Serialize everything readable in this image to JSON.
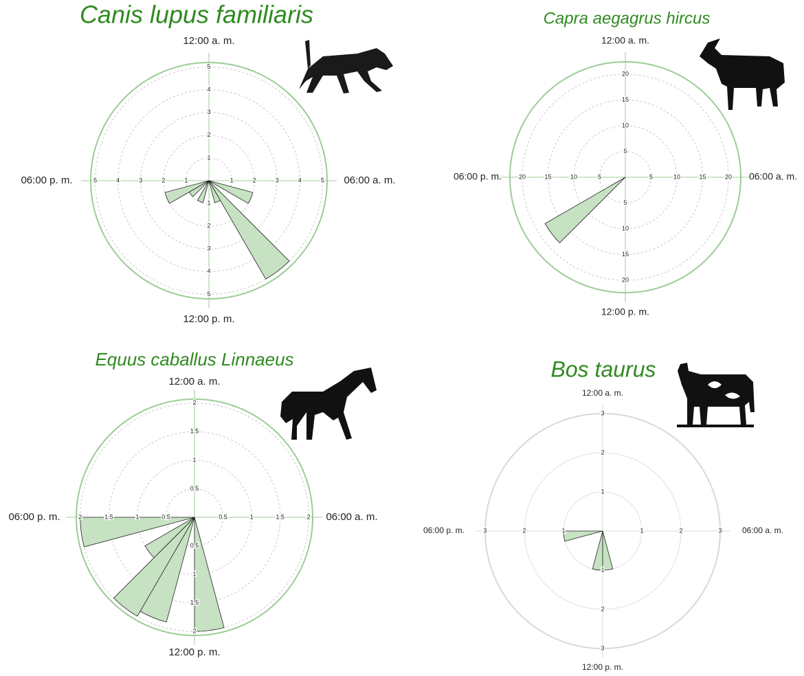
{
  "chart_data": [
    {
      "type": "rose",
      "title": "Canis lupus familiaris",
      "direction_labels": {
        "top": "12:00 a. m.",
        "right": "06:00 a. m.",
        "bottom": "12:00 p. m.",
        "left": "06:00 p. m."
      },
      "x": [
        7,
        9,
        10,
        13,
        15,
        16
      ],
      "values": [
        2,
        5,
        1,
        1,
        1,
        2
      ],
      "xlim": [
        0,
        24
      ],
      "ylim": [
        0,
        5.2
      ],
      "yticks": [
        1,
        2,
        3,
        4,
        5
      ],
      "color": "#c6e2c2",
      "frame_color": "#9ccc96",
      "grid": "dashed"
    },
    {
      "type": "rose",
      "title": "Capra aegagrus hircus",
      "direction_labels": {
        "top": "12:00 a. m.",
        "right": "06:00 a. m.",
        "bottom": "12:00 p. m.",
        "left": "06:00 p. m."
      },
      "x": [
        15
      ],
      "values": [
        18
      ],
      "xlim": [
        0,
        24
      ],
      "ylim": [
        0,
        22.4
      ],
      "yticks": [
        5,
        10,
        15,
        20
      ],
      "color": "#c6e2c2",
      "frame_color": "#9ccc96",
      "grid": "dashed"
    },
    {
      "type": "rose",
      "title": "Equus caballus Linnaeus",
      "direction_labels": {
        "top": "12:00 a. m.",
        "right": "06:00 a. m.",
        "bottom": "12:00 p. m.",
        "left": "06:00 p. m."
      },
      "x": [
        11,
        13,
        14,
        15,
        17
      ],
      "values": [
        2,
        1.9,
        2,
        1,
        2
      ],
      "xlim": [
        0,
        24
      ],
      "ylim": [
        0,
        2.07
      ],
      "yticks": [
        0.5,
        1,
        1.5,
        2
      ],
      "color": "#c6e2c2",
      "frame_color": "#9ccc96",
      "grid": "dashed"
    },
    {
      "type": "rose",
      "title": "Bos taurus",
      "direction_labels": {
        "top": "12:00 a. m.",
        "right": "06:00 a. m.",
        "bottom": "12:00 p. m.",
        "left": "06:00 p. m."
      },
      "x": [
        11,
        12,
        17
      ],
      "values": [
        1,
        1,
        1
      ],
      "xlim": [
        0,
        24
      ],
      "ylim": [
        0,
        3
      ],
      "yticks": [
        1,
        2,
        3
      ],
      "color": "#c6e2c2",
      "frame_color": "#d8d8d8",
      "grid": "solid"
    }
  ]
}
